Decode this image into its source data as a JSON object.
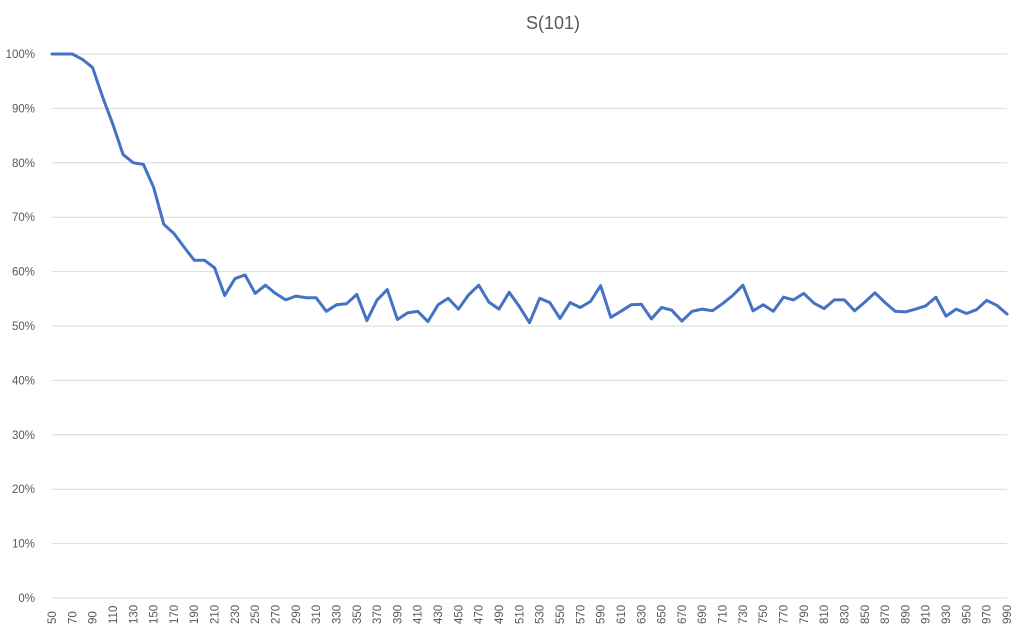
{
  "chart_data": {
    "type": "line",
    "title": "S(101)",
    "xlabel": "",
    "ylabel": "",
    "ylim": [
      0,
      1
    ],
    "grid": true,
    "legend": "none",
    "colors": {
      "line": "#4472C4",
      "grid": "#D9D9D9",
      "text": "#595959"
    },
    "y_ticks": [
      "0%",
      "10%",
      "20%",
      "30%",
      "40%",
      "50%",
      "60%",
      "70%",
      "80%",
      "90%",
      "100%"
    ],
    "x_tick_labels": [
      "50",
      "70",
      "90",
      "110",
      "130",
      "150",
      "170",
      "190",
      "210",
      "230",
      "250",
      "270",
      "290",
      "310",
      "330",
      "350",
      "370",
      "390",
      "410",
      "430",
      "450",
      "470",
      "490",
      "510",
      "530",
      "550",
      "570",
      "590",
      "610",
      "630",
      "650",
      "670",
      "690",
      "710",
      "730",
      "750",
      "770",
      "790",
      "810",
      "830",
      "850",
      "870",
      "890",
      "910",
      "930",
      "950",
      "970",
      "990"
    ],
    "series": [
      {
        "x": [
          50,
          60,
          70,
          80,
          90,
          100,
          110,
          120,
          130,
          140,
          150,
          160,
          170,
          180,
          190,
          200,
          210,
          220,
          230,
          240,
          250,
          260,
          270,
          280,
          290,
          300,
          310,
          320,
          330,
          340,
          350,
          360,
          370,
          380,
          390,
          400,
          410,
          420,
          430,
          440,
          450,
          460,
          470,
          480,
          490,
          500,
          510,
          520,
          530,
          540,
          550,
          560,
          570,
          580,
          590,
          600,
          610,
          620,
          630,
          640,
          650,
          660,
          670,
          680,
          690,
          700,
          710,
          720,
          730,
          740,
          750,
          760,
          770,
          780,
          790,
          800,
          810,
          820,
          830,
          840,
          850,
          860,
          870,
          880,
          890,
          900,
          910,
          920,
          930,
          940,
          950,
          960,
          970,
          980,
          990
        ],
        "values": [
          1.0,
          1.0,
          1.0,
          0.99,
          0.975,
          0.92,
          0.87,
          0.815,
          0.8,
          0.797,
          0.755,
          0.687,
          0.67,
          0.645,
          0.621,
          0.621,
          0.607,
          0.556,
          0.587,
          0.594,
          0.56,
          0.575,
          0.56,
          0.548,
          0.555,
          0.552,
          0.552,
          0.527,
          0.539,
          0.541,
          0.558,
          0.51,
          0.548,
          0.567,
          0.512,
          0.524,
          0.527,
          0.508,
          0.539,
          0.551,
          0.531,
          0.557,
          0.575,
          0.544,
          0.531,
          0.562,
          0.536,
          0.506,
          0.551,
          0.543,
          0.514,
          0.543,
          0.534,
          0.545,
          0.574,
          0.516,
          0.527,
          0.539,
          0.54,
          0.513,
          0.534,
          0.529,
          0.509,
          0.527,
          0.531,
          0.528,
          0.541,
          0.556,
          0.575,
          0.528,
          0.539,
          0.527,
          0.553,
          0.548,
          0.56,
          0.542,
          0.532,
          0.548,
          0.548,
          0.528,
          0.544,
          0.561,
          0.543,
          0.527,
          0.526,
          0.531,
          0.537,
          0.553,
          0.518,
          0.531,
          0.523,
          0.53,
          0.547,
          0.538,
          0.522
        ]
      }
    ]
  }
}
